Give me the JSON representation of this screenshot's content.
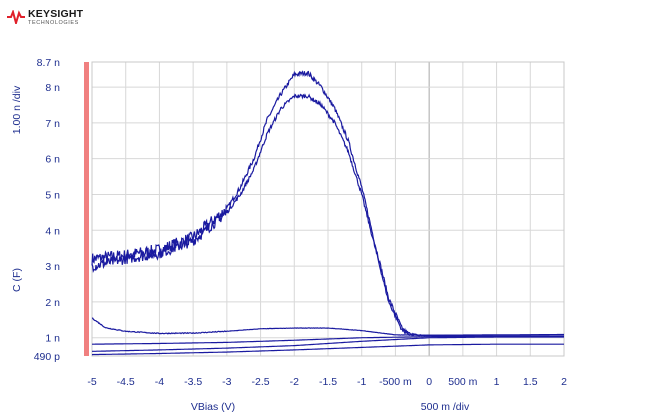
{
  "brand": {
    "name": "KEYSIGHT",
    "tagline": "TECHNOLOGIES",
    "logo_color": "#e0202a"
  },
  "colors": {
    "trace": "#1a1aa0",
    "axis_text": "#1f2f8f",
    "grid": "#d8d8d8",
    "marker_bar": "#f08080"
  },
  "chart_data": {
    "type": "line",
    "xlabel": "VBias (V)",
    "ylabel": "C (F)",
    "x_scale_label": "500 m /div",
    "y_scale_label": "1.00 n /div",
    "xlim": [
      -5,
      2
    ],
    "ylim": [
      0.49,
      8.7
    ],
    "x_ticks": [
      "-5",
      "-4.5",
      "-4",
      "-3.5",
      "-3",
      "-2.5",
      "-2",
      "-1.5",
      "-1",
      "-500 m",
      "0",
      "500 m",
      "1",
      "1.5",
      "2"
    ],
    "x_tick_values": [
      -5,
      -4.5,
      -4,
      -3.5,
      -3,
      -2.5,
      -2,
      -1.5,
      -1,
      -0.5,
      0,
      0.5,
      1,
      1.5,
      2
    ],
    "y_ticks": [
      "8.7 n",
      "8 n",
      "7 n",
      "6 n",
      "5 n",
      "4 n",
      "3 n",
      "2 n",
      "1 n",
      "490 p"
    ],
    "y_tick_values": [
      8.7,
      8,
      7,
      6,
      5,
      4,
      3,
      2,
      1,
      0.49
    ],
    "grid": true,
    "series": [
      {
        "noise": 0.22,
        "x": [
          -5,
          -4.5,
          -4,
          -3.5,
          -3,
          -2.8,
          -2.6,
          -2.4,
          -2.2,
          -2,
          -1.8,
          -1.6,
          -1.4,
          -1.2,
          -1,
          -0.8,
          -0.6,
          -0.4,
          -0.3,
          -0.2,
          -0.1,
          0,
          1,
          2
        ],
        "y": [
          3.2,
          3.3,
          3.45,
          3.8,
          4.6,
          5.2,
          6.0,
          7.1,
          7.8,
          8.35,
          8.4,
          8.0,
          7.4,
          6.5,
          5.2,
          3.6,
          2.1,
          1.25,
          1.12,
          1.08,
          1.07,
          1.07,
          1.08,
          1.09
        ]
      },
      {
        "noise": 0.18,
        "x": [
          -5,
          -4.5,
          -4,
          -3.5,
          -3,
          -2.8,
          -2.6,
          -2.4,
          -2.2,
          -2,
          -1.8,
          -1.6,
          -1.4,
          -1.2,
          -1,
          -0.8,
          -0.6,
          -0.4,
          -0.3,
          -0.2,
          -0.1,
          0,
          1,
          2
        ],
        "y": [
          3.0,
          3.2,
          3.35,
          3.7,
          4.5,
          5.0,
          5.7,
          6.7,
          7.4,
          7.75,
          7.75,
          7.5,
          7.0,
          6.2,
          5.0,
          3.5,
          2.0,
          1.2,
          1.1,
          1.07,
          1.06,
          1.06,
          1.07,
          1.08
        ]
      },
      {
        "noise": 0.015,
        "x": [
          -5,
          -4.8,
          -4.5,
          -4,
          -3.5,
          -3,
          -2.5,
          -2,
          -1.5,
          -1,
          -0.5,
          0,
          1,
          2
        ],
        "y": [
          1.55,
          1.28,
          1.18,
          1.12,
          1.13,
          1.18,
          1.25,
          1.27,
          1.27,
          1.2,
          1.08,
          1.07,
          1.07,
          1.08
        ]
      },
      {
        "noise": 0,
        "x": [
          -5,
          -4,
          -3,
          -2,
          -1,
          0,
          1,
          2
        ],
        "y": [
          0.62,
          0.66,
          0.71,
          0.78,
          0.9,
          1.0,
          1.02,
          1.02
        ]
      },
      {
        "noise": 0,
        "x": [
          -5,
          -4,
          -3,
          -2,
          -1,
          0,
          1,
          2
        ],
        "y": [
          0.82,
          0.84,
          0.87,
          0.93,
          1.0,
          1.03,
          1.04,
          1.04
        ]
      },
      {
        "noise": 0,
        "x": [
          -5,
          -4,
          -3,
          -2,
          -1,
          0,
          1,
          2
        ],
        "y": [
          0.53,
          0.56,
          0.6,
          0.66,
          0.73,
          0.8,
          0.82,
          0.82
        ]
      }
    ]
  }
}
